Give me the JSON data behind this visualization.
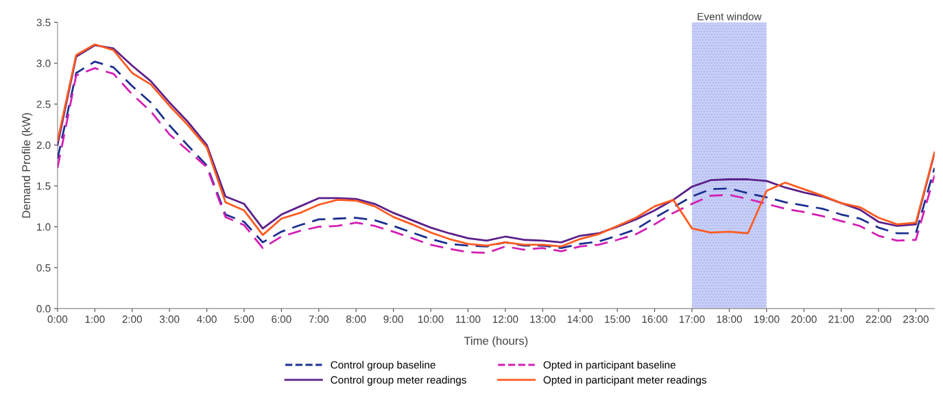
{
  "chart_data": {
    "type": "line",
    "xlabel": "Time (hours)",
    "ylabel": "Demand Profile (kW)",
    "x": [
      0,
      0.5,
      1,
      1.5,
      2,
      2.5,
      3,
      3.5,
      4,
      4.5,
      5,
      5.5,
      6,
      6.5,
      7,
      7.5,
      8,
      8.5,
      9,
      9.5,
      10,
      10.5,
      11,
      11.5,
      12,
      12.5,
      13,
      13.5,
      14,
      14.5,
      15,
      15.5,
      16,
      16.5,
      17,
      17.5,
      18,
      18.5,
      19,
      19.5,
      20,
      20.5,
      21,
      21.5,
      22,
      22.5,
      23,
      23.5
    ],
    "series": [
      {
        "name": "Control group baseline",
        "color": "#1b2f8f",
        "line_style": "dashed",
        "values": [
          1.83,
          2.88,
          3.02,
          2.95,
          2.72,
          2.52,
          2.24,
          1.99,
          1.75,
          1.15,
          1.06,
          0.81,
          0.94,
          1.02,
          1.09,
          1.1,
          1.11,
          1.08,
          1.01,
          0.93,
          0.85,
          0.79,
          0.77,
          0.76,
          0.81,
          0.77,
          0.77,
          0.74,
          0.79,
          0.82,
          0.89,
          0.97,
          1.11,
          1.24,
          1.37,
          1.46,
          1.47,
          1.41,
          1.36,
          1.3,
          1.26,
          1.22,
          1.15,
          1.1,
          0.99,
          0.92,
          0.92,
          1.72
        ]
      },
      {
        "name": "Control group meter readings",
        "color": "#5b1f8a",
        "line_style": "solid",
        "values": [
          2.0,
          3.08,
          3.22,
          3.18,
          2.97,
          2.78,
          2.52,
          2.28,
          2.0,
          1.37,
          1.28,
          0.98,
          1.15,
          1.25,
          1.35,
          1.35,
          1.34,
          1.28,
          1.17,
          1.08,
          0.99,
          0.92,
          0.86,
          0.83,
          0.88,
          0.84,
          0.83,
          0.81,
          0.89,
          0.92,
          1.0,
          1.09,
          1.2,
          1.33,
          1.49,
          1.57,
          1.58,
          1.58,
          1.56,
          1.48,
          1.42,
          1.37,
          1.29,
          1.21,
          1.06,
          1.01,
          1.03,
          1.9
        ]
      },
      {
        "name": "Opted in participant baseline",
        "color": "#d21fb4",
        "line_style": "dashed",
        "values": [
          1.72,
          2.85,
          2.94,
          2.87,
          2.62,
          2.41,
          2.13,
          1.93,
          1.73,
          1.12,
          1.02,
          0.74,
          0.88,
          0.95,
          1.0,
          1.01,
          1.05,
          1.01,
          0.94,
          0.86,
          0.78,
          0.73,
          0.69,
          0.68,
          0.76,
          0.72,
          0.74,
          0.7,
          0.76,
          0.78,
          0.84,
          0.91,
          1.03,
          1.17,
          1.28,
          1.38,
          1.39,
          1.34,
          1.28,
          1.22,
          1.18,
          1.13,
          1.07,
          1.01,
          0.89,
          0.83,
          0.84,
          1.63
        ]
      },
      {
        "name": "Opted in participant meter readings",
        "color": "#ff5a1f",
        "line_style": "solid",
        "values": [
          2.05,
          3.1,
          3.23,
          3.16,
          2.88,
          2.74,
          2.48,
          2.24,
          1.97,
          1.3,
          1.2,
          0.9,
          1.1,
          1.17,
          1.27,
          1.33,
          1.32,
          1.25,
          1.12,
          1.03,
          0.93,
          0.85,
          0.79,
          0.77,
          0.81,
          0.78,
          0.78,
          0.76,
          0.85,
          0.91,
          1.01,
          1.11,
          1.25,
          1.33,
          0.98,
          0.93,
          0.94,
          0.92,
          1.44,
          1.54,
          1.46,
          1.38,
          1.29,
          1.24,
          1.11,
          1.03,
          1.05,
          1.91
        ]
      }
    ],
    "xlim": [
      0,
      23.5
    ],
    "xticks": [
      {
        "value": 0,
        "label": "0:00"
      },
      {
        "value": 1,
        "label": "1:00"
      },
      {
        "value": 2,
        "label": "2:00"
      },
      {
        "value": 3,
        "label": "3:00"
      },
      {
        "value": 4,
        "label": "4:00"
      },
      {
        "value": 5,
        "label": "5:00"
      },
      {
        "value": 6,
        "label": "6:00"
      },
      {
        "value": 7,
        "label": "7:00"
      },
      {
        "value": 8,
        "label": "8:00"
      },
      {
        "value": 9,
        "label": "9:00"
      },
      {
        "value": 10,
        "label": "10:00"
      },
      {
        "value": 11,
        "label": "11:00"
      },
      {
        "value": 12,
        "label": "12:00"
      },
      {
        "value": 13,
        "label": "13:00"
      },
      {
        "value": 14,
        "label": "14:00"
      },
      {
        "value": 15,
        "label": "15:00"
      },
      {
        "value": 16,
        "label": "16:00"
      },
      {
        "value": 17,
        "label": "17:00"
      },
      {
        "value": 18,
        "label": "18:00"
      },
      {
        "value": 19,
        "label": "19:00"
      },
      {
        "value": 20,
        "label": "20:00"
      },
      {
        "value": 21,
        "label": "21:00"
      },
      {
        "value": 22,
        "label": "22:00"
      },
      {
        "value": 23,
        "label": "23:00"
      }
    ],
    "ylim": [
      0,
      3.5
    ],
    "yticks": [
      {
        "value": 0,
        "label": "0.0"
      },
      {
        "value": 0.5,
        "label": "0.5"
      },
      {
        "value": 1,
        "label": "1.0"
      },
      {
        "value": 1.5,
        "label": "1.5"
      },
      {
        "value": 2,
        "label": "2.0"
      },
      {
        "value": 2.5,
        "label": "2.5"
      },
      {
        "value": 3,
        "label": "3.0"
      },
      {
        "value": 3.5,
        "label": "3.5"
      }
    ],
    "bands": [
      {
        "axis": "x",
        "from": 17,
        "to": 19,
        "label": "Event window",
        "color": "#c9d0f7"
      }
    ],
    "grid": false,
    "legend": "bottom",
    "marker": "none"
  }
}
